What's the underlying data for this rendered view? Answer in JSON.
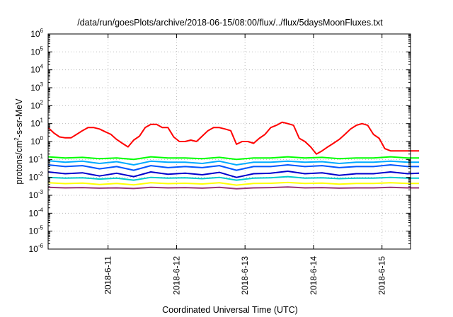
{
  "chart_data": {
    "type": "line",
    "title": "/data/run/goesPlots/archive/2018-06-15/08:00/flux/../flux/5daysMoonFluxes.txt",
    "xlabel": "Coordinated Universal Time (UTC)",
    "ylabel": {
      "prefix": "protons/cm",
      "sup": "2",
      "suffix": "-s-sr-MeV"
    },
    "y_scale": "log",
    "ylim_exponents": [
      -6,
      6
    ],
    "y_tick_base": "10",
    "y_tick_exponents": [
      "6",
      "5",
      "4",
      "3",
      "2",
      "1",
      "0",
      "-1",
      "-2",
      "-3",
      "-4",
      "-5",
      "-6"
    ],
    "xlim_days": [
      "2018-06-10T03:00",
      "2018-06-15T10:00"
    ],
    "x_ticks": [
      "2018-6-11",
      "2018-6-12",
      "2018-6-13",
      "2018-6-14",
      "2018-6-15"
    ],
    "grid": true,
    "legend": "none",
    "series": [
      {
        "color": "#ff0000",
        "x_hours": [
          0,
          2,
          4,
          6,
          8,
          10,
          12,
          14,
          16,
          18,
          20,
          22,
          24,
          26,
          28,
          30,
          32,
          34,
          36,
          38,
          40,
          42,
          44,
          46,
          48,
          50,
          52,
          54,
          56,
          58,
          60,
          62,
          64,
          66,
          68,
          70,
          72,
          74,
          76,
          78,
          80,
          82,
          84,
          86,
          88,
          90,
          92,
          94,
          96,
          98,
          100,
          102,
          104,
          106,
          108,
          110,
          112,
          114,
          116,
          118,
          120,
          122,
          124,
          126,
          128,
          130
        ],
        "y": [
          6,
          3,
          1.8,
          1.6,
          1.6,
          2.5,
          4,
          6,
          6,
          5,
          3.5,
          2.5,
          1.3,
          0.8,
          0.5,
          1.2,
          2,
          6,
          9,
          9,
          6,
          6,
          1.8,
          1,
          1,
          1.2,
          1,
          2,
          4,
          6,
          6,
          5,
          4,
          0.7,
          1,
          1,
          0.8,
          1.5,
          2.5,
          6,
          8,
          12,
          10,
          8,
          1.5,
          1,
          0.5,
          0.2,
          0.3,
          0.5,
          0.8,
          1.3,
          2.5,
          5,
          8,
          10,
          8,
          2.5,
          1.5,
          0.4,
          0.3,
          0.3,
          0.3,
          0.3,
          0.3,
          0.3
        ]
      },
      {
        "color": "#00ff00",
        "x_hours": [
          0,
          6,
          12,
          18,
          24,
          30,
          36,
          42,
          48,
          54,
          60,
          66,
          72,
          78,
          84,
          90,
          96,
          102,
          108,
          114,
          120,
          126,
          130
        ],
        "y": [
          0.14,
          0.12,
          0.13,
          0.11,
          0.12,
          0.1,
          0.14,
          0.12,
          0.12,
          0.11,
          0.13,
          0.1,
          0.12,
          0.12,
          0.14,
          0.12,
          0.13,
          0.11,
          0.12,
          0.12,
          0.14,
          0.12,
          0.12
        ]
      },
      {
        "color": "#00aaff",
        "x_hours": [
          0,
          6,
          12,
          18,
          24,
          30,
          36,
          42,
          48,
          54,
          60,
          66,
          72,
          78,
          84,
          90,
          96,
          102,
          108,
          114,
          120,
          126,
          130
        ],
        "y": [
          0.085,
          0.07,
          0.08,
          0.06,
          0.075,
          0.05,
          0.08,
          0.07,
          0.07,
          0.06,
          0.08,
          0.05,
          0.07,
          0.07,
          0.08,
          0.07,
          0.075,
          0.06,
          0.07,
          0.07,
          0.08,
          0.07,
          0.07
        ]
      },
      {
        "color": "#0055ff",
        "x_hours": [
          0,
          6,
          12,
          18,
          24,
          30,
          36,
          42,
          48,
          54,
          60,
          66,
          72,
          78,
          84,
          90,
          96,
          102,
          108,
          114,
          120,
          126,
          130
        ],
        "y": [
          0.05,
          0.04,
          0.045,
          0.03,
          0.04,
          0.025,
          0.045,
          0.035,
          0.04,
          0.035,
          0.045,
          0.025,
          0.04,
          0.04,
          0.05,
          0.04,
          0.045,
          0.035,
          0.04,
          0.04,
          0.05,
          0.04,
          0.04
        ]
      },
      {
        "color": "#0000cc",
        "x_hours": [
          0,
          6,
          12,
          18,
          24,
          30,
          36,
          42,
          48,
          54,
          60,
          66,
          72,
          78,
          84,
          90,
          96,
          102,
          108,
          114,
          120,
          126,
          130
        ],
        "y": [
          0.02,
          0.016,
          0.018,
          0.012,
          0.017,
          0.011,
          0.02,
          0.015,
          0.017,
          0.014,
          0.019,
          0.01,
          0.016,
          0.017,
          0.022,
          0.016,
          0.018,
          0.013,
          0.016,
          0.016,
          0.02,
          0.016,
          0.017
        ]
      },
      {
        "color": "#00cccc",
        "x_hours": [
          0,
          6,
          12,
          18,
          24,
          30,
          36,
          42,
          48,
          54,
          60,
          66,
          72,
          78,
          84,
          90,
          96,
          102,
          108,
          114,
          120,
          126,
          130
        ],
        "y": [
          0.01,
          0.009,
          0.0095,
          0.008,
          0.009,
          0.007,
          0.01,
          0.009,
          0.0095,
          0.0085,
          0.01,
          0.007,
          0.009,
          0.0095,
          0.011,
          0.009,
          0.0095,
          0.0085,
          0.009,
          0.009,
          0.01,
          0.009,
          0.009
        ]
      },
      {
        "color": "#ffff00",
        "x_hours": [
          0,
          6,
          12,
          18,
          24,
          30,
          36,
          42,
          48,
          54,
          60,
          66,
          72,
          78,
          84,
          90,
          96,
          102,
          108,
          114,
          120,
          126,
          130
        ],
        "y": [
          0.005,
          0.0045,
          0.0048,
          0.004,
          0.0046,
          0.0038,
          0.005,
          0.0045,
          0.0047,
          0.0043,
          0.005,
          0.0037,
          0.0046,
          0.0047,
          0.0052,
          0.0046,
          0.0048,
          0.0042,
          0.0046,
          0.0046,
          0.005,
          0.0046,
          0.0046
        ]
      },
      {
        "color": "#993377",
        "x_hours": [
          0,
          6,
          12,
          18,
          24,
          30,
          36,
          42,
          48,
          54,
          60,
          66,
          72,
          78,
          84,
          90,
          96,
          102,
          108,
          114,
          120,
          126,
          130
        ],
        "y": [
          0.0028,
          0.0026,
          0.0027,
          0.0025,
          0.0026,
          0.0024,
          0.0028,
          0.0026,
          0.0027,
          0.0025,
          0.0028,
          0.0023,
          0.0026,
          0.0027,
          0.0029,
          0.0026,
          0.0027,
          0.0025,
          0.0026,
          0.0026,
          0.0028,
          0.0026,
          0.0026
        ]
      }
    ]
  }
}
